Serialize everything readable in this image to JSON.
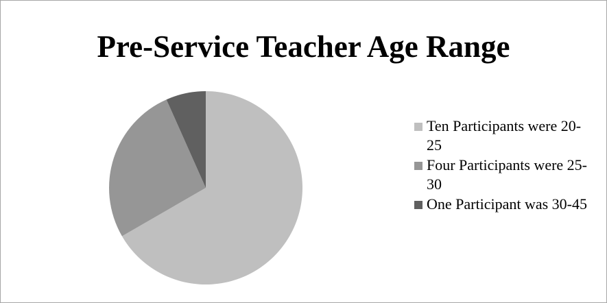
{
  "chart_data": {
    "type": "pie",
    "title": "Pre-Service Teacher Age Range",
    "categories": [
      "Ten Participants were 20-25",
      "Four Participants were 25-30",
      "One Participant was 30-45"
    ],
    "values": [
      10,
      4,
      1
    ],
    "colors": [
      "#bfbfbf",
      "#969696",
      "#606060"
    ],
    "legend": "right"
  }
}
